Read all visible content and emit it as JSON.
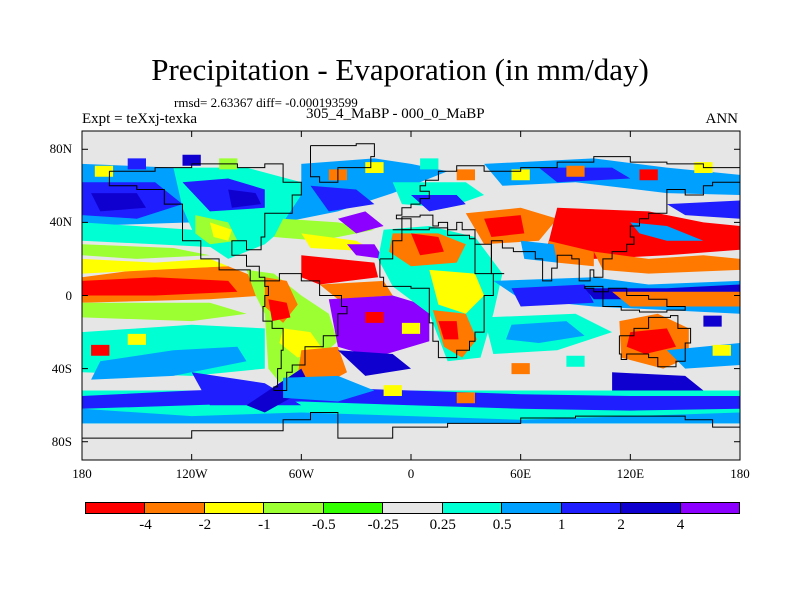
{
  "header": {
    "title": "Precipitation - Evaporation (in mm/day)",
    "stats": "rmsd= 2.63367 diff= -0.000193599",
    "expt": "Expt = teXxj-texka",
    "subtitle": "305_4_MaBP - 000_0_MaBP",
    "season": "ANN"
  },
  "axes": {
    "x_ticks": [
      "180",
      "120W",
      "60W",
      "0",
      "60E",
      "120E",
      "180"
    ],
    "x_values": [
      -180,
      -120,
      -60,
      0,
      60,
      120,
      180
    ],
    "y_ticks": [
      "80N",
      "40N",
      "0",
      "40S",
      "80S"
    ],
    "y_values": [
      80,
      40,
      0,
      -40,
      -80
    ],
    "lon_range": [
      -180,
      180
    ],
    "lat_range": [
      -90,
      90
    ]
  },
  "colorbar": {
    "labels": [
      "-4",
      "-2",
      "-1",
      "-0.5",
      "-0.25",
      "0.25",
      "0.5",
      "1",
      "2",
      "4"
    ],
    "colors": [
      "#ff0000",
      "#ff7800",
      "#ffff00",
      "#9bff32",
      "#32ff00",
      "#e6e6e6",
      "#00ffd2",
      "#00a0ff",
      "#1e1eff",
      "#1000d0",
      "#8c00ff"
    ]
  },
  "map": {
    "default_color": "#e6e6e6"
  }
}
